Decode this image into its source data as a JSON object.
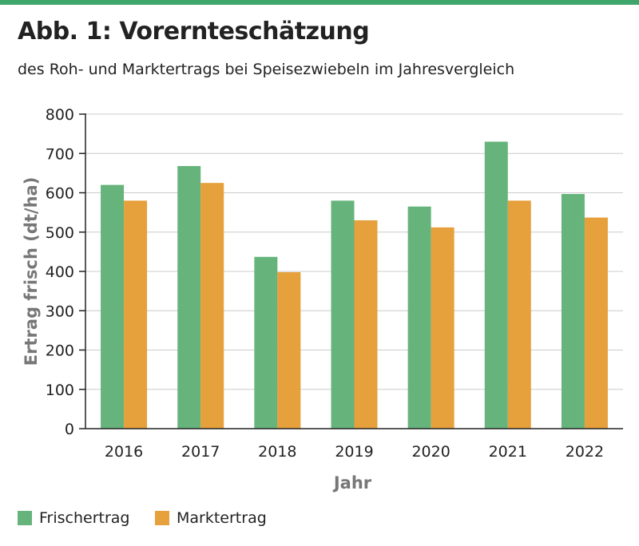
{
  "header": {
    "title": "Abb. 1: Vorernteschätzung",
    "subtitle": "des Roh- und Marktertrags bei Speisezwiebeln im Jahresvergleich"
  },
  "colors": {
    "accent": "#3ea56b",
    "frischertrag": "#66b47c",
    "marktertrag": "#e6a03c",
    "grid": "#cccccc",
    "axis": "#222222"
  },
  "chart_data": {
    "type": "bar",
    "categories": [
      "2016",
      "2017",
      "2018",
      "2019",
      "2020",
      "2021",
      "2022"
    ],
    "series": [
      {
        "name": "Frischertrag",
        "values": [
          620,
          668,
          437,
          580,
          565,
          730,
          597
        ]
      },
      {
        "name": "Marktertrag",
        "values": [
          580,
          625,
          398,
          530,
          512,
          580,
          537
        ]
      }
    ],
    "xlabel": "Jahr",
    "ylabel": "Ertrag frisch (dt/ha)",
    "ylim": [
      0,
      800
    ],
    "yticks": [
      "0",
      "100",
      "200",
      "300",
      "400",
      "500",
      "600",
      "700",
      "800"
    ],
    "grid": true,
    "legend": "bottom-left"
  }
}
